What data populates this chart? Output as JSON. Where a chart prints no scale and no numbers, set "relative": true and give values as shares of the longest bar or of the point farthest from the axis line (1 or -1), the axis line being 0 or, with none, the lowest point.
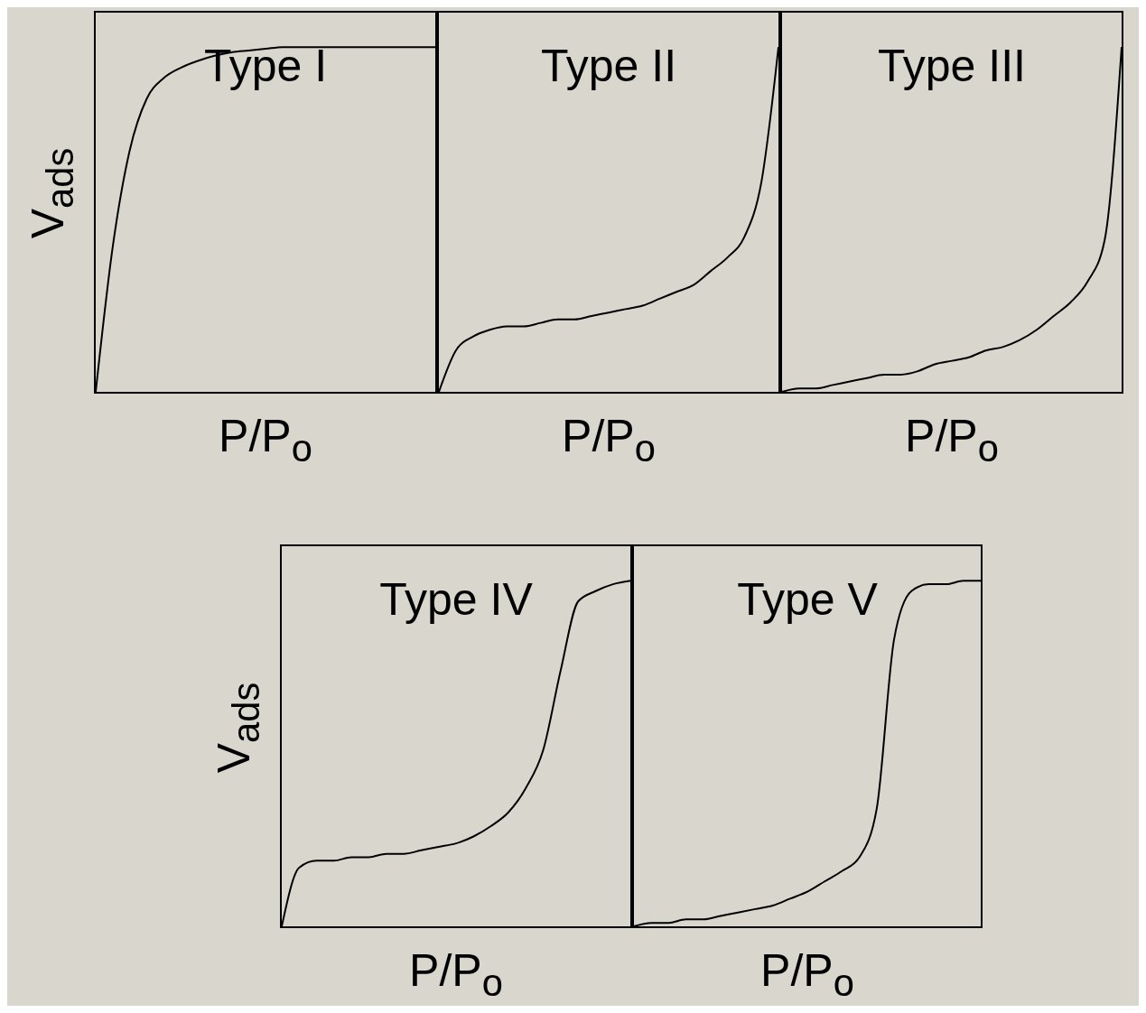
{
  "chart_data": [
    {
      "type": "line",
      "title": "Type I",
      "xlabel": "P/P$_{o}$",
      "ylabel": "V$_{ads}$",
      "categories": [
        null,
        null,
        null,
        null,
        null,
        null,
        null,
        null,
        null,
        null,
        null,
        null,
        null,
        null,
        null,
        null,
        null,
        null,
        null,
        null,
        null
      ],
      "relative": true,
      "tick_labels": false,
      "marker": "none",
      "color": "#000000",
      "values": [
        0,
        0.42,
        0.7,
        0.85,
        0.91,
        0.94,
        0.96,
        0.975,
        0.985,
        0.99,
        0.995,
        1,
        1,
        1,
        1,
        1,
        1,
        1,
        1,
        1,
        1
      ]
    },
    {
      "type": "line",
      "title": "Type II",
      "xlabel": "P/P$_{o}$",
      "categories": [
        null,
        null,
        null,
        null,
        null,
        null,
        null,
        null,
        null,
        null,
        null,
        null,
        null,
        null,
        null,
        null,
        null,
        null,
        null,
        null,
        null
      ],
      "relative": true,
      "tick_labels": false,
      "marker": "none",
      "color": "#000000",
      "values": [
        0,
        0.12,
        0.16,
        0.18,
        0.19,
        0.19,
        0.2,
        0.21,
        0.21,
        0.22,
        0.23,
        0.24,
        0.25,
        0.27,
        0.29,
        0.31,
        0.35,
        0.39,
        0.45,
        0.61,
        1
      ]
    },
    {
      "type": "line",
      "title": "Type III",
      "xlabel": "P/P$_{o}$",
      "categories": [
        null,
        null,
        null,
        null,
        null,
        null,
        null,
        null,
        null,
        null,
        null,
        null,
        null,
        null,
        null,
        null,
        null,
        null,
        null,
        null,
        null
      ],
      "relative": true,
      "tick_labels": false,
      "marker": "none",
      "color": "#000000",
      "values": [
        0,
        0.01,
        0.01,
        0.02,
        0.03,
        0.04,
        0.05,
        0.05,
        0.06,
        0.08,
        0.09,
        0.1,
        0.12,
        0.13,
        0.15,
        0.18,
        0.22,
        0.26,
        0.32,
        0.44,
        1
      ]
    },
    {
      "type": "line",
      "title": "Type IV",
      "xlabel": "P/P$_{o}$",
      "ylabel": "V$_{ads}$",
      "categories": [
        null,
        null,
        null,
        null,
        null,
        null,
        null,
        null,
        null,
        null,
        null,
        null,
        null,
        null,
        null,
        null,
        null,
        null,
        null,
        null,
        null
      ],
      "relative": true,
      "tick_labels": false,
      "marker": "none",
      "color": "#000000",
      "values": [
        0,
        0.17,
        0.19,
        0.19,
        0.2,
        0.2,
        0.21,
        0.21,
        0.22,
        0.23,
        0.24,
        0.26,
        0.29,
        0.33,
        0.4,
        0.51,
        0.74,
        0.94,
        0.97,
        0.99,
        1
      ]
    },
    {
      "type": "line",
      "title": "Type V",
      "xlabel": "P/P$_{o}$",
      "categories": [
        null,
        null,
        null,
        null,
        null,
        null,
        null,
        null,
        null,
        null,
        null,
        null,
        null,
        null,
        null,
        null,
        null,
        null,
        null,
        null,
        null
      ],
      "relative": true,
      "tick_labels": false,
      "marker": "none",
      "color": "#000000",
      "values": [
        0,
        0.01,
        0.01,
        0.02,
        0.02,
        0.03,
        0.04,
        0.05,
        0.06,
        0.08,
        0.1,
        0.13,
        0.16,
        0.2,
        0.34,
        0.83,
        0.97,
        0.99,
        0.99,
        1,
        1
      ]
    }
  ]
}
